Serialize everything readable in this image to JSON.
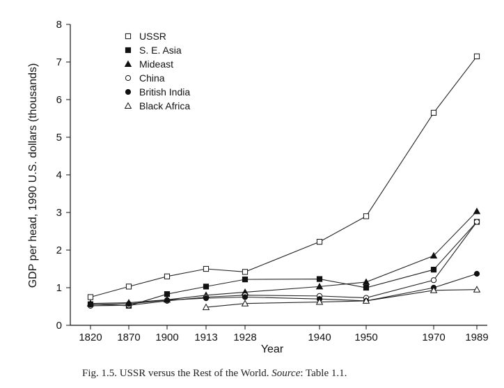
{
  "chart_data": {
    "type": "line",
    "categories": [
      "1820",
      "1870",
      "1900",
      "1913",
      "1928",
      "1940",
      "1950",
      "1970",
      "1989"
    ],
    "ylabel": "GDP per head, 1990 U.S. dollars (thousands)",
    "xlabel": "Year",
    "ylim": [
      0,
      8
    ],
    "yticks": [
      0,
      1,
      2,
      3,
      4,
      5,
      6,
      7,
      8
    ],
    "grid": false,
    "legend_position": "top-left",
    "series": [
      {
        "name": "USSR",
        "marker": "open-square",
        "values": [
          0.75,
          1.03,
          1.3,
          1.5,
          1.42,
          2.22,
          2.9,
          5.65,
          7.15
        ]
      },
      {
        "name": "S. E. Asia",
        "marker": "filled-square",
        "values": [
          0.56,
          0.52,
          0.83,
          1.03,
          1.22,
          1.23,
          1.0,
          1.48,
          2.75
        ]
      },
      {
        "name": "Mideast",
        "marker": "filled-triangle",
        "values": [
          0.58,
          0.6,
          0.68,
          0.8,
          0.88,
          1.03,
          1.15,
          1.85,
          3.03
        ]
      },
      {
        "name": "China",
        "marker": "open-circle",
        "values": [
          0.52,
          0.53,
          0.65,
          0.75,
          0.8,
          0.78,
          0.73,
          1.2,
          2.75
        ]
      },
      {
        "name": "British India",
        "marker": "filled-circle",
        "values": [
          0.55,
          0.57,
          0.67,
          0.72,
          0.75,
          0.7,
          0.65,
          1.0,
          1.37
        ]
      },
      {
        "name": "Black Africa",
        "marker": "open-triangle",
        "values": [
          null,
          null,
          null,
          0.48,
          0.58,
          0.62,
          0.65,
          0.93,
          0.95
        ]
      }
    ]
  },
  "caption": {
    "prefix": "Fig. 1.5. USSR versus the Rest of the World. ",
    "source_label": "Source",
    "suffix": ": Table 1.1."
  }
}
